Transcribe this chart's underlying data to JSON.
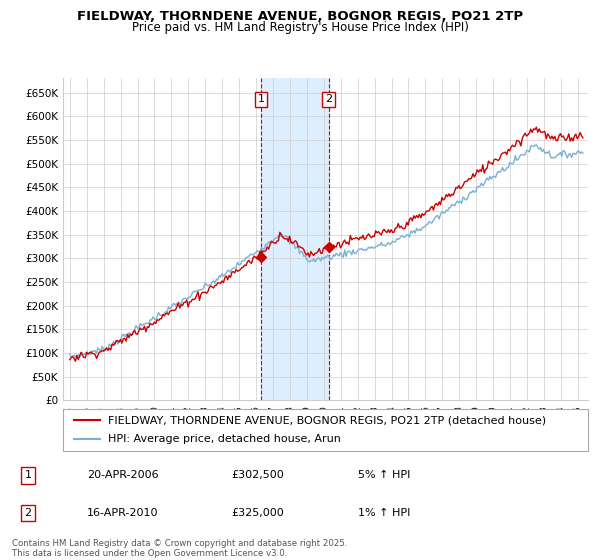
{
  "title": "FIELDWAY, THORNDENE AVENUE, BOGNOR REGIS, PO21 2TP",
  "subtitle": "Price paid vs. HM Land Registry's House Price Index (HPI)",
  "ylabel_ticks": [
    "£0",
    "£50K",
    "£100K",
    "£150K",
    "£200K",
    "£250K",
    "£300K",
    "£350K",
    "£400K",
    "£450K",
    "£500K",
    "£550K",
    "£600K",
    "£650K"
  ],
  "ytick_values": [
    0,
    50000,
    100000,
    150000,
    200000,
    250000,
    300000,
    350000,
    400000,
    450000,
    500000,
    550000,
    600000,
    650000
  ],
  "ylim": [
    0,
    680000
  ],
  "xlim_start": 1994.6,
  "xlim_end": 2025.6,
  "marker1_x": 2006.29,
  "marker2_x": 2010.29,
  "shade_color": "#ddeeff",
  "marker_box_color": "#cc0000",
  "hpi_line_color": "#7ab0d4",
  "price_line_color": "#cc0000",
  "grid_color": "#cccccc",
  "background_color": "#ffffff",
  "legend_label_price": "FIELDWAY, THORNDENE AVENUE, BOGNOR REGIS, PO21 2TP (detached house)",
  "legend_label_hpi": "HPI: Average price, detached house, Arun",
  "sale1_x": 2006.29,
  "sale1_y": 302500,
  "sale2_x": 2010.29,
  "sale2_y": 325000,
  "table_row1": [
    "1",
    "20-APR-2006",
    "£302,500",
    "5% ↑ HPI"
  ],
  "table_row2": [
    "2",
    "16-APR-2010",
    "£325,000",
    "1% ↑ HPI"
  ],
  "footer": "Contains HM Land Registry data © Crown copyright and database right 2025.\nThis data is licensed under the Open Government Licence v3.0.",
  "title_fontsize": 9.5,
  "subtitle_fontsize": 8.5,
  "tick_fontsize": 7.5,
  "legend_fontsize": 8
}
